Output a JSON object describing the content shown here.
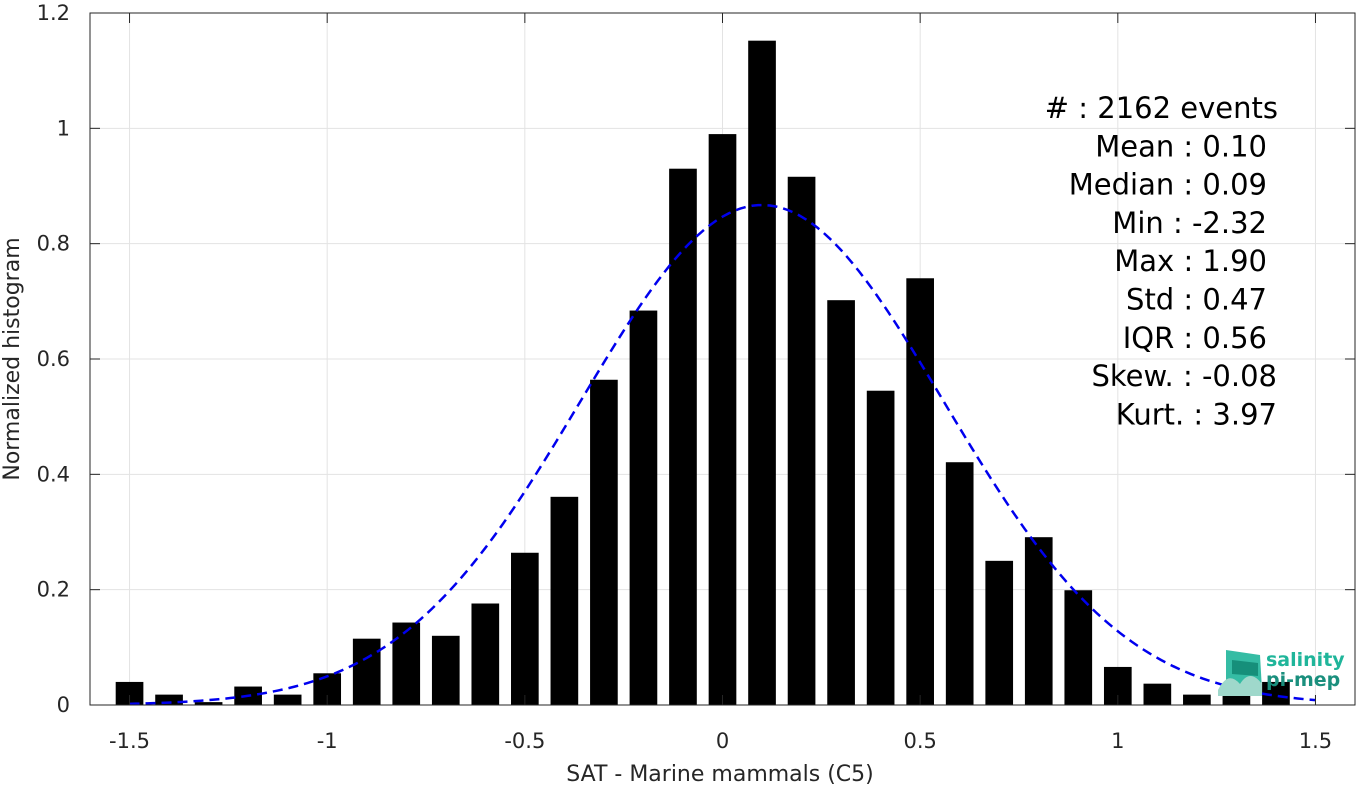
{
  "chart_data": {
    "type": "bar",
    "xlabel": "SAT - Marine mammals (C5)",
    "ylabel": "Normalized histogram",
    "xlim": [
      -1.6,
      1.6
    ],
    "ylim": [
      0,
      1.2
    ],
    "x_ticks": [
      -1.5,
      -1,
      -0.5,
      0,
      0.5,
      1,
      1.5
    ],
    "x_tick_labels": [
      "-1.5",
      "-1",
      "-0.5",
      "0",
      "0.5",
      "1",
      "1.5"
    ],
    "y_ticks": [
      0,
      0.2,
      0.4,
      0.6,
      0.8,
      1,
      1.2
    ],
    "y_tick_labels": [
      "0",
      "0.2",
      "0.4",
      "0.6",
      "0.8",
      "1",
      "1.2"
    ],
    "grid": true,
    "bin_width": 0.1,
    "bar_color": "#000000",
    "bins": {
      "x": [
        -1.5,
        -1.4,
        -1.3,
        -1.2,
        -1.1,
        -1.0,
        -0.9,
        -0.8,
        -0.7,
        -0.6,
        -0.5,
        -0.4,
        -0.3,
        -0.2,
        -0.1,
        0.0,
        0.1,
        0.2,
        0.3,
        0.4,
        0.5,
        0.6,
        0.7,
        0.8,
        0.9,
        1.0,
        1.1,
        1.2,
        1.3,
        1.4
      ],
      "values": [
        0.04,
        0.018,
        0.005,
        0.032,
        0.018,
        0.055,
        0.115,
        0.143,
        0.12,
        0.176,
        0.264,
        0.361,
        0.564,
        0.684,
        0.93,
        0.99,
        1.152,
        0.916,
        0.702,
        0.545,
        0.74,
        0.421,
        0.25,
        0.291,
        0.199,
        0.066,
        0.037,
        0.018,
        0.018,
        0.04
      ]
    },
    "fit": {
      "style": "dashed",
      "color": "#0000ee",
      "mean": 0.1,
      "std": 0.46,
      "peak": 0.867,
      "x_range": [
        -1.5,
        1.5
      ]
    },
    "stats": [
      "#  : 2162 events",
      "Mean : 0.10",
      "Median : 0.09",
      "Min : -2.32",
      "Max : 1.90",
      "Std : 0.47",
      "IQR : 0.56",
      "Skew. : -0.08",
      "Kurt. : 3.97"
    ]
  },
  "logo": {
    "line1": "salinity",
    "line2": "pi-mep",
    "color": "#1fb59a"
  }
}
